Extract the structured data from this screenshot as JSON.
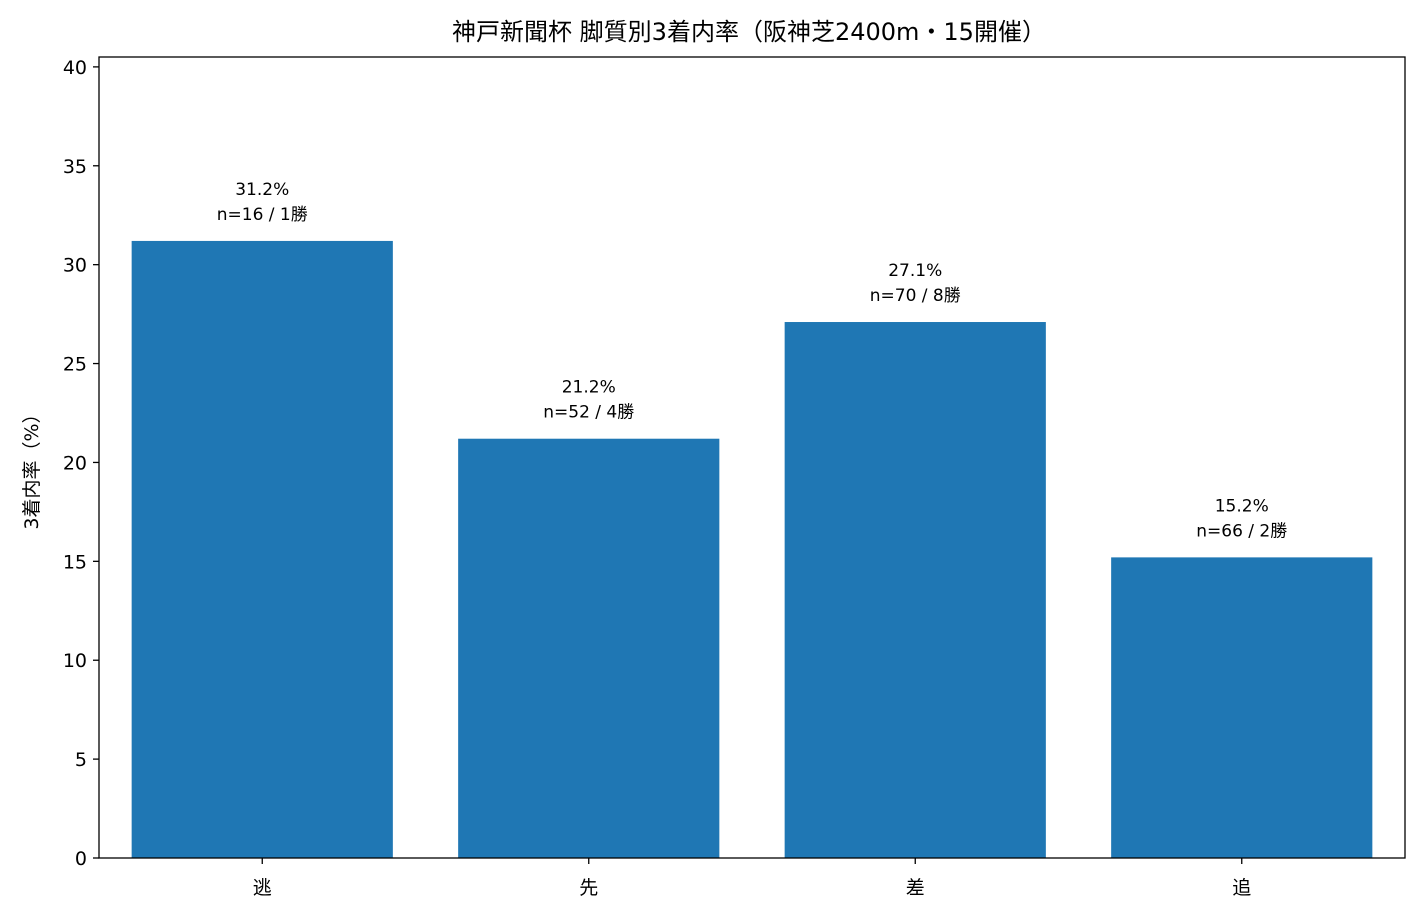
{
  "chart_data": {
    "type": "bar",
    "title": "神戸新聞杯 脚質別3着内率（阪神芝2400m・15開催）",
    "xlabel": "",
    "ylabel": "3着内率（%）",
    "categories": [
      "逃",
      "先",
      "差",
      "追"
    ],
    "values": [
      31.2,
      21.2,
      27.1,
      15.2
    ],
    "data_labels": [
      [
        "31.2%",
        "n=16 / 1勝"
      ],
      [
        "21.2%",
        "n=52 / 4勝"
      ],
      [
        "27.1%",
        "n=70 / 8勝"
      ],
      [
        "15.2%",
        "n=66 / 2勝"
      ]
    ],
    "ylim": [
      0,
      40.5
    ],
    "yticks": [
      0,
      5,
      10,
      15,
      20,
      25,
      30,
      35,
      40
    ],
    "grid": false,
    "bar_color": "#1f77b4"
  }
}
